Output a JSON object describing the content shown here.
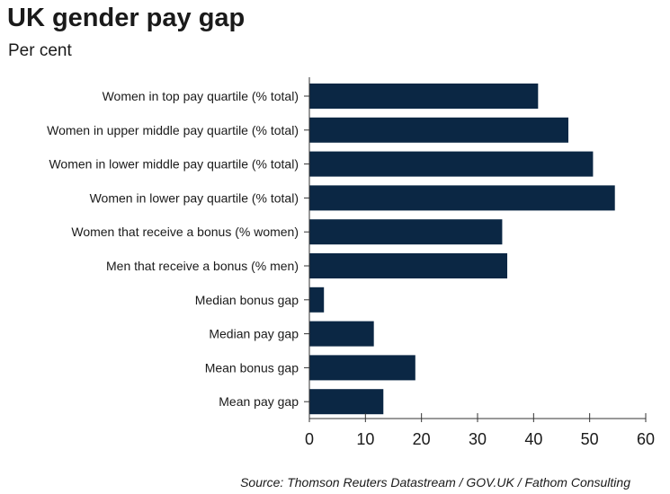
{
  "chart_data": {
    "type": "bar",
    "orientation": "horizontal",
    "title": "UK gender pay gap",
    "subtitle": "Per cent",
    "source": "Source: Thomson Reuters Datastream / GOV.UK / Fathom Consulting",
    "categories": [
      "Women in top pay quartile (% total)",
      "Women in upper middle pay quartile (% total)",
      "Women in lower middle pay quartile (% total)",
      "Women in lower pay quartile (% total)",
      "Women that receive a bonus (% women)",
      "Men that receive a bonus (% men)",
      "Median bonus gap",
      "Median pay gap",
      "Mean bonus gap",
      "Mean pay gap"
    ],
    "values": [
      40.8,
      46.2,
      50.6,
      54.5,
      34.4,
      35.3,
      2.6,
      11.5,
      18.9,
      13.2
    ],
    "xlim": [
      0,
      60
    ],
    "xticks": [
      "0",
      "10",
      "20",
      "30",
      "40",
      "50",
      "60"
    ],
    "xlabel": "",
    "ylabel": "",
    "grid": false,
    "legend": "none",
    "bar_color": "#0b2744",
    "axis_color": "#333333"
  }
}
